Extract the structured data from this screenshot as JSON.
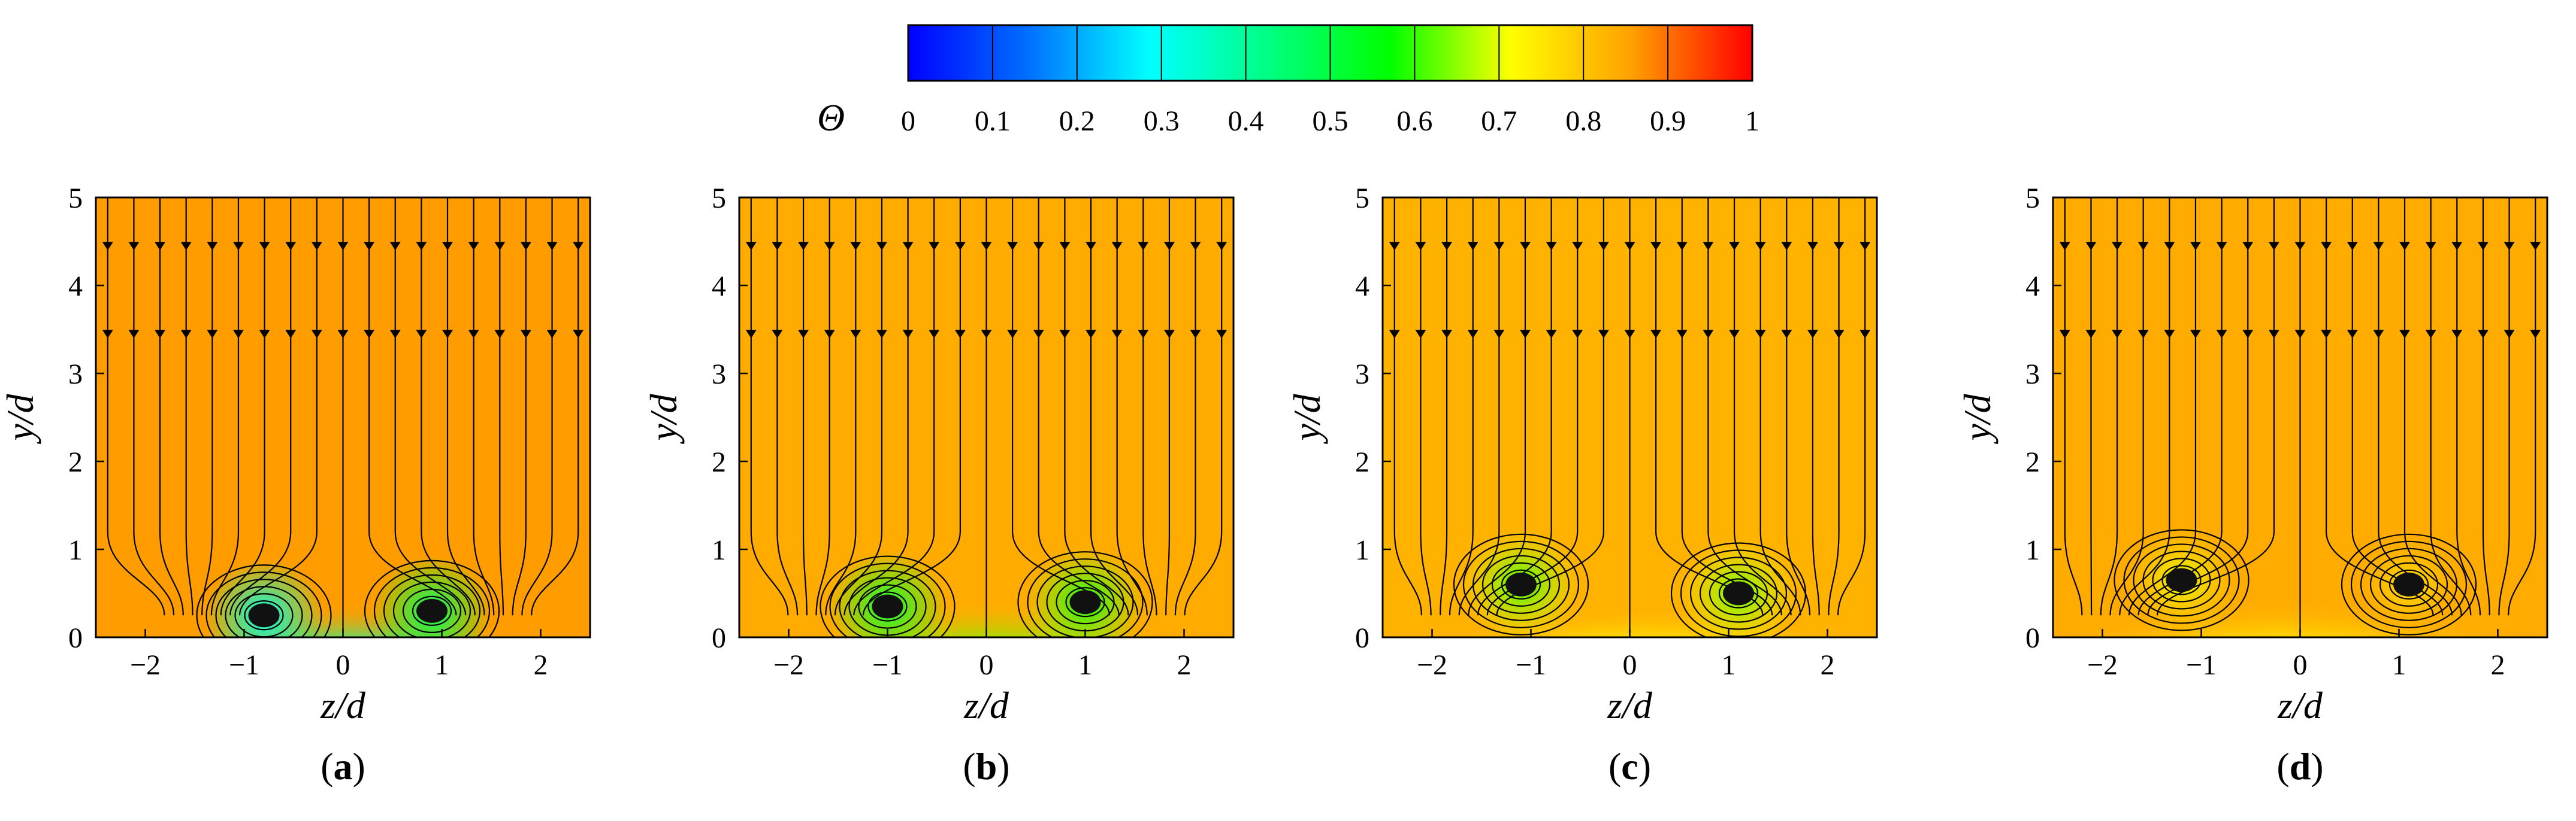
{
  "colorbar": {
    "symbol": "Θ",
    "ticks": [
      "0",
      "0.1",
      "0.2",
      "0.3",
      "0.4",
      "0.5",
      "0.6",
      "0.7",
      "0.8",
      "0.9",
      "1"
    ],
    "range": [
      0,
      1
    ],
    "colors": [
      "#0000ff",
      "#0070ff",
      "#00ffff",
      "#00ff80",
      "#00ff00",
      "#ffff00",
      "#ffa000",
      "#ff0000"
    ]
  },
  "chart_data": [
    {
      "type": "heatmap",
      "panel": "a",
      "caption_letter": "a",
      "title": "",
      "xlabel": "z/d",
      "ylabel": "y/d",
      "xlim": [
        -2.5,
        2.5
      ],
      "ylim": [
        0,
        5
      ],
      "xticks": [
        "-2",
        "-1",
        "0",
        "1",
        "2"
      ],
      "yticks": [
        "0",
        "1",
        "2",
        "3",
        "4",
        "5"
      ],
      "background_theta": 0.86,
      "vortices": [
        {
          "z": -0.8,
          "y": 0.25,
          "theta_core": 0.3
        },
        {
          "z": 0.9,
          "y": 0.3,
          "theta_core": 0.45
        }
      ],
      "low_theta_region": {
        "z_range": [
          -1.5,
          1.6
        ],
        "y_max": 0.7,
        "theta_min": 0.2
      }
    },
    {
      "type": "heatmap",
      "panel": "b",
      "caption_letter": "b",
      "title": "",
      "xlabel": "z/d",
      "ylabel": "y/d",
      "xlim": [
        -2.5,
        2.5
      ],
      "ylim": [
        0,
        5
      ],
      "xticks": [
        "-2",
        "-1",
        "0",
        "1",
        "2"
      ],
      "yticks": [
        "0",
        "1",
        "2",
        "3",
        "4",
        "5"
      ],
      "background_theta": 0.84,
      "vortices": [
        {
          "z": -1.0,
          "y": 0.35,
          "theta_core": 0.5
        },
        {
          "z": 1.0,
          "y": 0.4,
          "theta_core": 0.55
        }
      ],
      "low_theta_region": {
        "z_range": [
          -1.6,
          1.7
        ],
        "y_max": 0.75,
        "theta_min": 0.45
      }
    },
    {
      "type": "heatmap",
      "panel": "c",
      "caption_letter": "c",
      "title": "",
      "xlabel": "z/d",
      "ylabel": "y/d",
      "xlim": [
        -2.5,
        2.5
      ],
      "ylim": [
        0,
        5
      ],
      "xticks": [
        "-2",
        "-1",
        "0",
        "1",
        "2"
      ],
      "yticks": [
        "0",
        "1",
        "2",
        "3",
        "4",
        "5"
      ],
      "background_theta": 0.83,
      "vortices": [
        {
          "z": -1.1,
          "y": 0.6,
          "theta_core": 0.6
        },
        {
          "z": 1.1,
          "y": 0.5,
          "theta_core": 0.62
        }
      ],
      "low_theta_region": {
        "z_range": [
          -1.8,
          2.0
        ],
        "y_max": 0.65,
        "theta_min": 0.55
      }
    },
    {
      "type": "heatmap",
      "panel": "d",
      "caption_letter": "d",
      "title": "",
      "xlabel": "z/d",
      "ylabel": "y/d",
      "xlim": [
        -2.5,
        2.5
      ],
      "ylim": [
        0,
        5
      ],
      "xticks": [
        "-2",
        "-1",
        "0",
        "1",
        "2"
      ],
      "yticks": [
        "0",
        "1",
        "2",
        "3",
        "4",
        "5"
      ],
      "background_theta": 0.84,
      "vortices": [
        {
          "z": -1.2,
          "y": 0.65,
          "theta_core": 0.7
        },
        {
          "z": 1.1,
          "y": 0.6,
          "theta_core": 0.75
        }
      ],
      "low_theta_region": {
        "z_range": [
          -2.3,
          2.0
        ],
        "y_max": 0.8,
        "theta_min": 0.55
      }
    }
  ]
}
